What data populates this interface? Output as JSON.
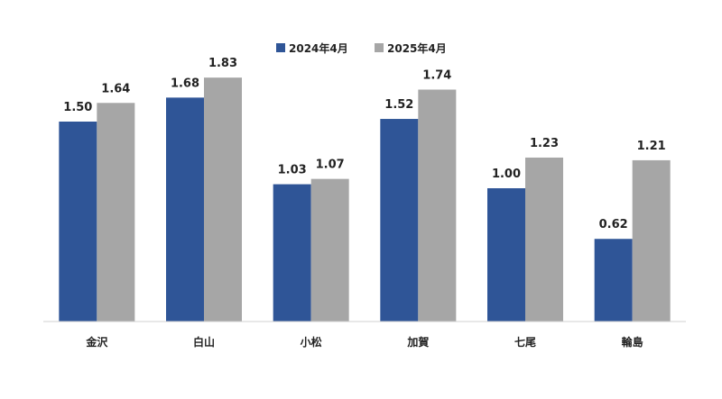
{
  "colors": {
    "series_2024": "#2f5597",
    "series_2025": "#a6a6a6",
    "axis": "#d0d0d0",
    "text": "#222222"
  },
  "chart_data": {
    "type": "bar",
    "title": "",
    "xlabel": "",
    "ylabel": "",
    "categories": [
      "金沢",
      "白山",
      "小松",
      "加賀",
      "七尾",
      "輪島"
    ],
    "series": [
      {
        "name": "2024年4月",
        "values": [
          1.5,
          1.68,
          1.03,
          1.52,
          1.0,
          0.62
        ],
        "labels": [
          "1.50",
          "1.68",
          "1.03",
          "1.52",
          "1.00",
          "0.62"
        ]
      },
      {
        "name": "2025年4月",
        "values": [
          1.64,
          1.83,
          1.07,
          1.74,
          1.23,
          1.21
        ],
        "labels": [
          "1.64",
          "1.83",
          "1.07",
          "1.74",
          "1.23",
          "1.21"
        ]
      }
    ],
    "ylim": [
      0,
      2.0
    ],
    "grid": false,
    "legend_position": "top-center"
  }
}
